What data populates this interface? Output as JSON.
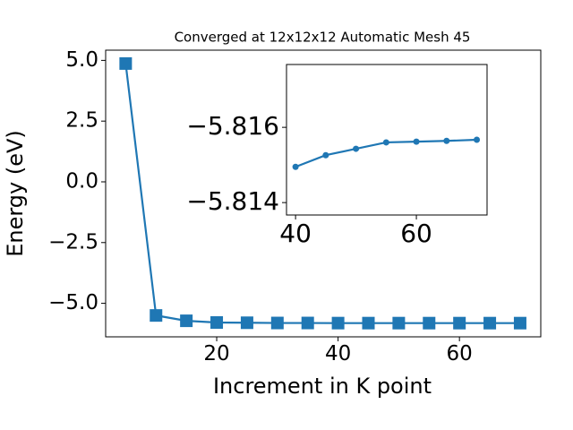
{
  "chart_data": [
    {
      "type": "line",
      "title": "Converged at 12x12x12 Automatic Mesh 45",
      "x_label": "Increment in K point",
      "y_label": "Energy (eV)",
      "marker": "square",
      "color": "#1f77b4",
      "x": [
        5,
        10,
        15,
        20,
        25,
        30,
        35,
        40,
        45,
        50,
        55,
        60,
        65,
        70
      ],
      "values": [
        4.87,
        -5.5,
        -5.72,
        -5.79,
        -5.8,
        -5.81,
        -5.81,
        -5.81495,
        -5.81526,
        -5.81543,
        -5.8156,
        -5.81562,
        -5.81564,
        -5.81567
      ],
      "xlim": [
        1.7,
        73.4
      ],
      "ylim": [
        -6.38,
        5.42
      ],
      "xticks": [
        20,
        40,
        60
      ],
      "yticks": [
        {
          "value": -5.0,
          "label": "−5.0"
        },
        {
          "value": -2.5,
          "label": "−2.5"
        },
        {
          "value": 0.0,
          "label": "0.0"
        },
        {
          "value": 2.5,
          "label": "2.5"
        },
        {
          "value": 5.0,
          "label": "5.0"
        }
      ]
    },
    {
      "type": "line",
      "marker": "circle",
      "color": "#1f77b4",
      "x": [
        40,
        45,
        50,
        55,
        60,
        65,
        70
      ],
      "values": [
        -5.81495,
        -5.81526,
        -5.81543,
        -5.8156,
        -5.81562,
        -5.81564,
        -5.81567
      ],
      "xlim": [
        38.5,
        71.7
      ],
      "ylim": [
        -5.81367,
        -5.81767
      ],
      "xticks": [
        40,
        60
      ],
      "yticks": [
        {
          "value": -5.816,
          "label": "−5.816"
        },
        {
          "value": -5.814,
          "label": "−5.814"
        }
      ]
    }
  ]
}
